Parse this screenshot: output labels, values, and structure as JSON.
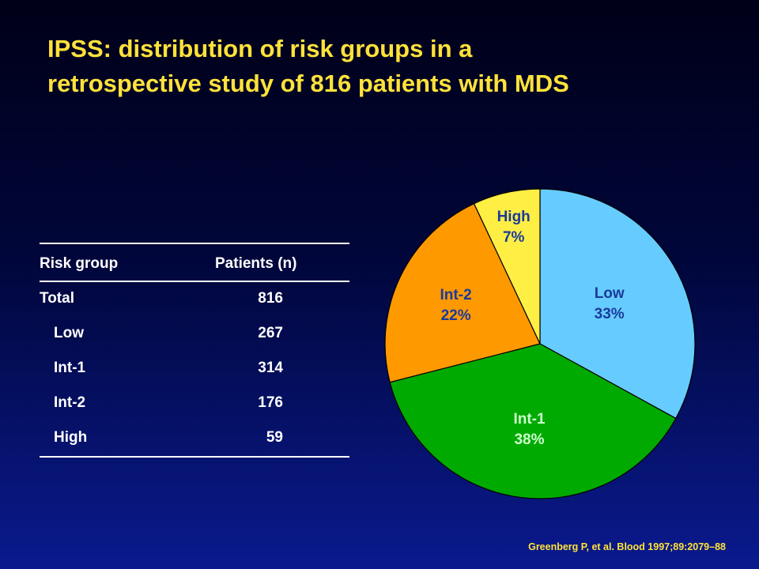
{
  "title": {
    "line1": "IPSS: distribution of risk groups in a",
    "line2": "retrospective study of 816 patients with MDS"
  },
  "table": {
    "headers": [
      "Risk group",
      "Patients (n)"
    ],
    "rows": [
      {
        "group": "Total",
        "patients": "816"
      },
      {
        "group": "Low",
        "patients": "267"
      },
      {
        "group": "Int-1",
        "patients": "314"
      },
      {
        "group": "Int-2",
        "patients": "176"
      },
      {
        "group": "High",
        "patients": "59"
      }
    ]
  },
  "chart_data": {
    "type": "pie",
    "slices": [
      {
        "label": "Low",
        "percent_label": "33%",
        "value": 33,
        "color": "#66ccff"
      },
      {
        "label": "Int-1",
        "percent_label": "38%",
        "value": 38,
        "color": "#00aa00"
      },
      {
        "label": "Int-2",
        "percent_label": "22%",
        "value": 22,
        "color": "#ff9900"
      },
      {
        "label": "High",
        "percent_label": "7%",
        "value": 7,
        "color": "#ffee44"
      }
    ],
    "start": "12 o'clock",
    "direction": "clockwise"
  },
  "citation": "Greenberg P, et al. Blood 1997;89:2079–88"
}
